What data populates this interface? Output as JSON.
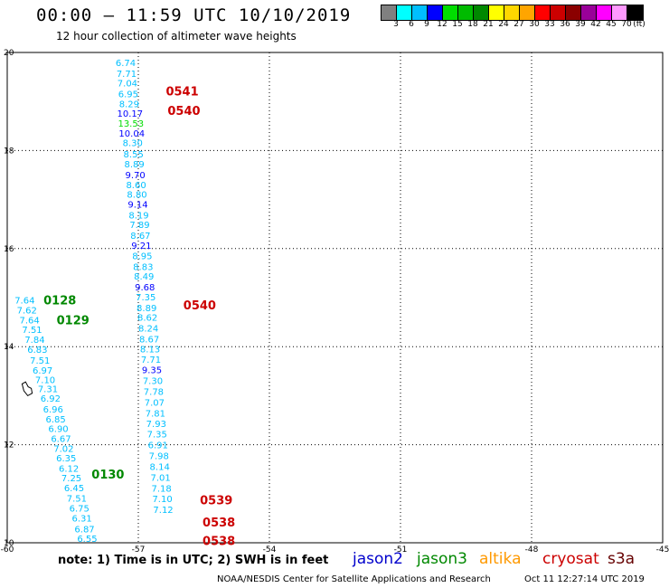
{
  "header": {
    "title": "00:00 – 11:59 UTC 10/10/2019",
    "subtitle": "12 hour collection of altimeter wave heights"
  },
  "colorbar": {
    "colors": [
      "#808080",
      "#00ffff",
      "#00bfff",
      "#0000ff",
      "#00dd00",
      "#00bb00",
      "#008800",
      "#ffff00",
      "#ffd700",
      "#ffa500",
      "#ff0000",
      "#cc0000",
      "#8b0000",
      "#990099",
      "#ff00ff",
      "#ff99ff",
      "#000000"
    ],
    "labels": [
      "3",
      "6",
      "9",
      "12",
      "15",
      "18",
      "21",
      "24",
      "27",
      "30",
      "33",
      "36",
      "39",
      "42",
      "45",
      "70",
      "(ft)"
    ]
  },
  "map": {
    "lon_ticks": [
      "-60",
      "-57",
      "-54",
      "-51",
      "-48",
      "-45"
    ],
    "lat_ticks": [
      "20",
      "18",
      "16",
      "14",
      "12",
      "10"
    ]
  },
  "chart_data": {
    "type": "scatter",
    "xlim": [
      -60,
      -45
    ],
    "ylim": [
      10,
      20
    ],
    "x_axis": "longitude",
    "y_axis": "latitude",
    "grid": true,
    "color_scale": [
      {
        "max": 9,
        "color": "#00bfff"
      },
      {
        "max": 12,
        "color": "#0000ff"
      },
      {
        "max": 15,
        "color": "#00dd00"
      }
    ],
    "tracks": [
      {
        "satellite": "jason3",
        "pass_labels": [
          {
            "text": "0128",
            "lon": -59.17,
            "lat": 14.95
          },
          {
            "text": "0129",
            "lon": -58.87,
            "lat": 14.55
          },
          {
            "text": "0130",
            "lon": -58.07,
            "lat": 11.4
          }
        ],
        "points": [
          {
            "lon": -59.6,
            "lat": 14.95,
            "swh": 7.64
          },
          {
            "lon": -59.55,
            "lat": 14.75,
            "swh": 7.62
          },
          {
            "lon": -59.49,
            "lat": 14.55,
            "swh": 7.64
          },
          {
            "lon": -59.43,
            "lat": 14.35,
            "swh": 7.51
          },
          {
            "lon": -59.37,
            "lat": 14.15,
            "swh": 7.84
          },
          {
            "lon": -59.31,
            "lat": 13.95,
            "swh": 6.83
          },
          {
            "lon": -59.25,
            "lat": 13.73,
            "swh": 7.51
          },
          {
            "lon": -59.19,
            "lat": 13.52,
            "swh": 6.97
          },
          {
            "lon": -59.13,
            "lat": 13.33,
            "swh": 7.1
          },
          {
            "lon": -59.07,
            "lat": 13.15,
            "swh": 7.31
          },
          {
            "lon": -59.01,
            "lat": 12.95,
            "swh": 6.92
          },
          {
            "lon": -58.95,
            "lat": 12.73,
            "swh": 6.96
          },
          {
            "lon": -58.89,
            "lat": 12.53,
            "swh": 6.85
          },
          {
            "lon": -58.83,
            "lat": 12.33,
            "swh": 6.9
          },
          {
            "lon": -58.77,
            "lat": 12.13,
            "swh": 6.67
          },
          {
            "lon": -58.71,
            "lat": 11.93,
            "swh": 7.02
          },
          {
            "lon": -58.65,
            "lat": 11.73,
            "swh": 6.35
          },
          {
            "lon": -58.59,
            "lat": 11.52,
            "swh": 6.12
          },
          {
            "lon": -58.53,
            "lat": 11.33,
            "swh": 7.25
          },
          {
            "lon": -58.47,
            "lat": 11.13,
            "swh": 6.45
          },
          {
            "lon": -58.41,
            "lat": 10.91,
            "swh": 7.51
          },
          {
            "lon": -58.35,
            "lat": 10.71,
            "swh": 6.75
          },
          {
            "lon": -58.29,
            "lat": 10.51,
            "swh": 6.31
          },
          {
            "lon": -58.23,
            "lat": 10.29,
            "swh": 6.87
          },
          {
            "lon": -58.17,
            "lat": 10.09,
            "swh": 6.55
          }
        ]
      },
      {
        "satellite": "cryosat",
        "pass_labels": [
          {
            "text": "0541",
            "lon": -56.37,
            "lat": 19.22
          },
          {
            "text": "0540",
            "lon": -56.33,
            "lat": 18.82
          },
          {
            "text": "0540",
            "lon": -55.97,
            "lat": 14.85
          },
          {
            "text": "0539",
            "lon": -55.59,
            "lat": 10.88
          },
          {
            "text": "0538",
            "lon": -55.53,
            "lat": 10.42
          },
          {
            "text": "0538",
            "lon": -55.53,
            "lat": 10.05
          }
        ],
        "points": [
          {
            "lon": -57.29,
            "lat": 19.8,
            "swh": 6.74
          },
          {
            "lon": -57.27,
            "lat": 19.58,
            "swh": 7.71
          },
          {
            "lon": -57.25,
            "lat": 19.38,
            "swh": 7.04
          },
          {
            "lon": -57.23,
            "lat": 19.16,
            "swh": 6.95
          },
          {
            "lon": -57.21,
            "lat": 18.96,
            "swh": 8.29
          },
          {
            "lon": -57.19,
            "lat": 18.76,
            "swh": 10.17
          },
          {
            "lon": -57.17,
            "lat": 18.56,
            "swh": 13.53
          },
          {
            "lon": -57.15,
            "lat": 18.36,
            "swh": 10.04
          },
          {
            "lon": -57.13,
            "lat": 18.16,
            "swh": 8.3
          },
          {
            "lon": -57.11,
            "lat": 17.93,
            "swh": 8.55
          },
          {
            "lon": -57.09,
            "lat": 17.73,
            "swh": 8.89
          },
          {
            "lon": -57.07,
            "lat": 17.51,
            "swh": 9.7
          },
          {
            "lon": -57.05,
            "lat": 17.31,
            "swh": 8.6
          },
          {
            "lon": -57.03,
            "lat": 17.11,
            "swh": 8.8
          },
          {
            "lon": -57.01,
            "lat": 16.91,
            "swh": 9.14
          },
          {
            "lon": -56.99,
            "lat": 16.69,
            "swh": 8.19
          },
          {
            "lon": -56.97,
            "lat": 16.49,
            "swh": 7.89
          },
          {
            "lon": -56.95,
            "lat": 16.27,
            "swh": 8.67
          },
          {
            "lon": -56.93,
            "lat": 16.07,
            "swh": 9.21
          },
          {
            "lon": -56.91,
            "lat": 15.86,
            "swh": 8.95
          },
          {
            "lon": -56.89,
            "lat": 15.64,
            "swh": 8.83
          },
          {
            "lon": -56.87,
            "lat": 15.44,
            "swh": 8.49
          },
          {
            "lon": -56.85,
            "lat": 15.22,
            "swh": 9.68
          },
          {
            "lon": -56.83,
            "lat": 15.02,
            "swh": 7.35
          },
          {
            "lon": -56.81,
            "lat": 14.8,
            "swh": 8.89
          },
          {
            "lon": -56.79,
            "lat": 14.6,
            "swh": 8.62
          },
          {
            "lon": -56.77,
            "lat": 14.38,
            "swh": 8.24
          },
          {
            "lon": -56.75,
            "lat": 14.16,
            "swh": 8.67
          },
          {
            "lon": -56.73,
            "lat": 13.96,
            "swh": 8.13
          },
          {
            "lon": -56.71,
            "lat": 13.75,
            "swh": 7.71
          },
          {
            "lon": -56.69,
            "lat": 13.53,
            "swh": 9.35
          },
          {
            "lon": -56.67,
            "lat": 13.31,
            "swh": 7.3
          },
          {
            "lon": -56.65,
            "lat": 13.09,
            "swh": 7.78
          },
          {
            "lon": -56.63,
            "lat": 12.87,
            "swh": 7.07
          },
          {
            "lon": -56.61,
            "lat": 12.65,
            "swh": 7.81
          },
          {
            "lon": -56.59,
            "lat": 12.44,
            "swh": 7.93
          },
          {
            "lon": -56.57,
            "lat": 12.22,
            "swh": 7.35
          },
          {
            "lon": -56.55,
            "lat": 12.0,
            "swh": 6.91
          },
          {
            "lon": -56.53,
            "lat": 11.78,
            "swh": 7.98
          },
          {
            "lon": -56.51,
            "lat": 11.56,
            "swh": 8.14
          },
          {
            "lon": -56.49,
            "lat": 11.34,
            "swh": 7.01
          },
          {
            "lon": -56.47,
            "lat": 11.12,
            "swh": 7.18
          },
          {
            "lon": -56.45,
            "lat": 10.9,
            "swh": 7.1
          },
          {
            "lon": -56.43,
            "lat": 10.68,
            "swh": 7.12
          }
        ]
      }
    ],
    "land": [
      {
        "name": "",
        "points": [
          [
            -59.58,
            13.28
          ],
          [
            -59.52,
            13.18
          ],
          [
            -59.45,
            13.15
          ],
          [
            -59.43,
            13.05
          ],
          [
            -59.53,
            13.0
          ],
          [
            -59.62,
            13.1
          ],
          [
            -59.66,
            13.24
          ]
        ]
      }
    ]
  },
  "note": "note:  1) Time is in UTC;  2) SWH is in feet",
  "legend": [
    {
      "name": "jason2",
      "color": "#0000cc"
    },
    {
      "name": "jason3",
      "color": "#008800"
    },
    {
      "name": "altika",
      "color": "#ff9900"
    },
    {
      "name": "cryosat",
      "color": "#cc0000"
    },
    {
      "name": "s3a",
      "color": "#660000"
    }
  ],
  "footer": {
    "source": "NOAA/NESDIS Center for Satellite Applications and Research",
    "timestamp": "Oct 11 12:27:14 UTC 2019"
  }
}
